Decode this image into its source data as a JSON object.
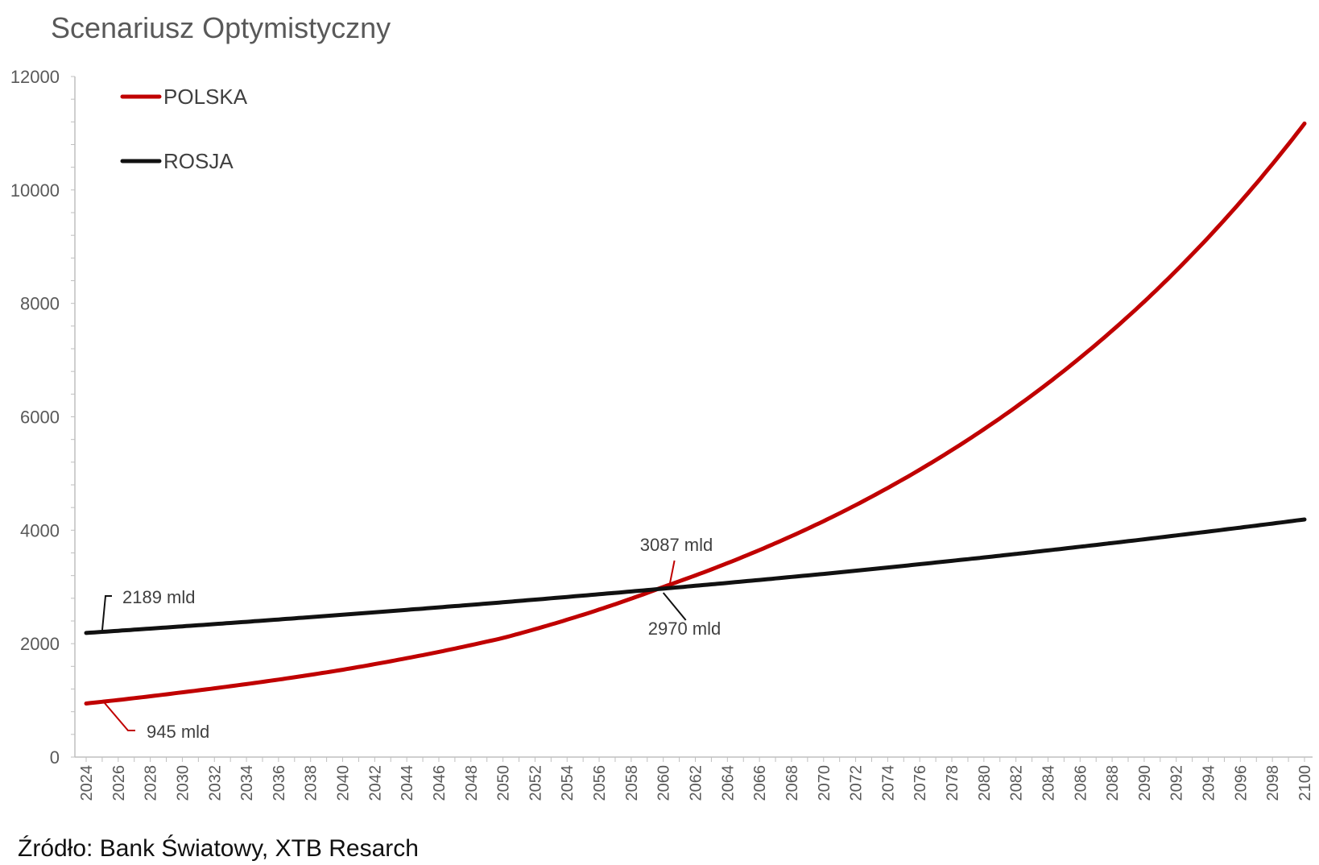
{
  "chart_data": {
    "type": "line",
    "title": "Scenariusz Optymistyczny",
    "xlabel": "",
    "ylabel": "",
    "ylim": [
      0,
      12000
    ],
    "y_ticks": [
      0,
      2000,
      4000,
      6000,
      8000,
      10000,
      12000
    ],
    "x_range": [
      2024,
      2100
    ],
    "x_tick_labels": [
      "2024",
      "2026",
      "2028",
      "2030",
      "2032",
      "2034",
      "2036",
      "2038",
      "2040",
      "2042",
      "2044",
      "2046",
      "2048",
      "2050",
      "2052",
      "2054",
      "2056",
      "2058",
      "2060",
      "2062",
      "2064",
      "2066",
      "2068",
      "2070",
      "2072",
      "2074",
      "2076",
      "2078",
      "2080",
      "2082",
      "2084",
      "2086",
      "2088",
      "2090",
      "2092",
      "2094",
      "2096",
      "2098",
      "2100"
    ],
    "legend_position": "top-left",
    "grid": false,
    "series": [
      {
        "name": "POLSKA",
        "color": "#c00000",
        "x": [
          2024,
          2030,
          2040,
          2050,
          2060,
          2070,
          2080,
          2090,
          2100
        ],
        "y": [
          945,
          1142,
          1540,
          2100,
          3000,
          4160,
          5780,
          8030,
          11170
        ]
      },
      {
        "name": "ROSJA",
        "color": "#111111",
        "x": [
          2024,
          2030,
          2040,
          2050,
          2060,
          2070,
          2080,
          2090,
          2100
        ],
        "y": [
          2189,
          2305,
          2510,
          2730,
          2970,
          3230,
          3520,
          3840,
          4190
        ]
      }
    ],
    "annotations": [
      {
        "text": "2189 mld",
        "series": "ROSJA",
        "x": 2024,
        "y": 2189,
        "color": "#111111"
      },
      {
        "text": "945 mld",
        "series": "POLSKA",
        "x": 2024,
        "y": 945,
        "color": "#c00000"
      },
      {
        "text": "3087 mld",
        "series": "POLSKA",
        "x": 2061,
        "y": 3087,
        "color": "#c00000"
      },
      {
        "text": "2970 mld",
        "series": "ROSJA",
        "x": 2060,
        "y": 2970,
        "color": "#111111"
      }
    ]
  },
  "source": "Źródło: Bank Światowy, XTB Resarch"
}
